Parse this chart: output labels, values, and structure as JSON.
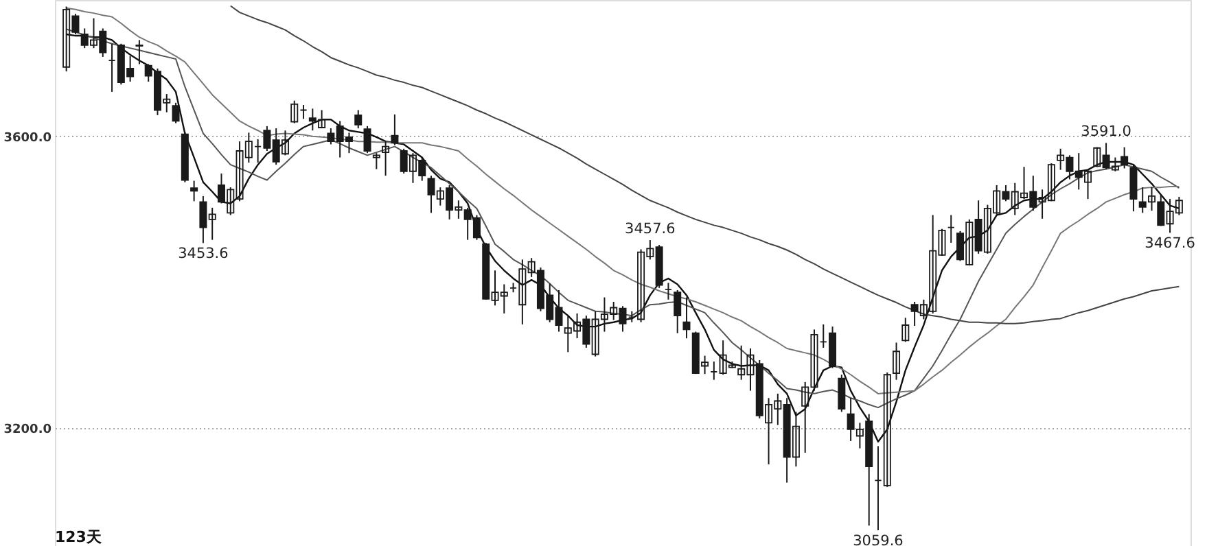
{
  "chart_data": {
    "type": "candlestick",
    "categories": [
      null,
      null,
      null,
      null,
      null,
      null,
      null,
      null,
      null,
      null,
      null,
      null,
      null,
      null,
      null,
      null,
      null,
      null,
      null,
      null,
      null,
      null,
      null,
      null,
      null,
      null,
      null,
      null,
      null,
      null,
      null,
      null,
      null,
      null,
      null,
      null,
      null,
      null,
      null,
      null,
      null,
      null,
      null,
      null,
      null,
      null,
      null,
      null,
      null,
      null,
      null,
      null,
      null,
      null,
      null,
      null,
      null,
      null,
      null,
      null,
      null,
      null,
      null,
      null,
      null,
      null,
      null,
      null,
      null,
      null,
      null,
      null,
      null,
      null,
      null,
      null,
      null,
      null,
      null,
      null,
      null,
      null,
      null,
      null,
      null,
      null,
      null,
      null,
      null,
      null,
      null,
      null,
      null,
      null,
      null,
      null,
      null,
      null,
      null,
      null,
      null,
      null,
      null,
      null,
      null,
      null,
      null,
      null,
      null,
      null,
      null,
      null,
      null,
      null,
      null,
      null,
      null,
      null,
      null,
      null,
      null,
      null,
      null
    ],
    "color": "#1a1a1a",
    "ohlc": [
      [
        3695,
        3778,
        3689,
        3774
      ],
      [
        3765,
        3768,
        3740,
        3743
      ],
      [
        3740,
        3748,
        3721,
        3725
      ],
      [
        3725,
        3762,
        3721,
        3732
      ],
      [
        3744,
        3748,
        3709,
        3715
      ],
      [
        3704,
        3727,
        3661,
        3704
      ],
      [
        3725,
        3727,
        3671,
        3674
      ],
      [
        3693,
        3710,
        3675,
        3682
      ],
      [
        3725,
        3732,
        3699,
        3724
      ],
      [
        3697,
        3699,
        3675,
        3683
      ],
      [
        3689,
        3693,
        3629,
        3636
      ],
      [
        3646,
        3658,
        3633,
        3651
      ],
      [
        3642,
        3646,
        3618,
        3621
      ],
      [
        3603,
        3606,
        3537,
        3540
      ],
      [
        3529,
        3539,
        3511,
        3525
      ],
      [
        3510,
        3518,
        3453.6,
        3475
      ],
      [
        3486,
        3502,
        3458,
        3493
      ],
      [
        3533,
        3549,
        3508,
        3510
      ],
      [
        3495,
        3530,
        3492,
        3527
      ],
      [
        3514,
        3593,
        3511,
        3580
      ],
      [
        3571,
        3605,
        3564,
        3593
      ],
      [
        3586,
        3596,
        3564,
        3586
      ],
      [
        3608,
        3614,
        3580,
        3584
      ],
      [
        3595,
        3611,
        3561,
        3565
      ],
      [
        3576,
        3608,
        3574,
        3595
      ],
      [
        3620,
        3649,
        3618,
        3644
      ],
      [
        3636,
        3643,
        3624,
        3636
      ],
      [
        3625,
        3638,
        3608,
        3621
      ],
      [
        3612,
        3636,
        3611,
        3623
      ],
      [
        3604,
        3611,
        3589,
        3593
      ],
      [
        3614,
        3621,
        3571,
        3593
      ],
      [
        3599,
        3605,
        3577,
        3593
      ],
      [
        3629,
        3636,
        3611,
        3616
      ],
      [
        3610,
        3614,
        3577,
        3580
      ],
      [
        3571,
        3577,
        3555,
        3574
      ],
      [
        3578,
        3593,
        3546,
        3586
      ],
      [
        3601,
        3630,
        3588,
        3591
      ],
      [
        3580,
        3583,
        3549,
        3552
      ],
      [
        3552,
        3577,
        3536,
        3574
      ],
      [
        3567,
        3571,
        3539,
        3546
      ],
      [
        3542,
        3546,
        3495,
        3520
      ],
      [
        3514,
        3530,
        3505,
        3525
      ],
      [
        3529,
        3533,
        3486,
        3499
      ],
      [
        3499,
        3512,
        3487,
        3503
      ],
      [
        3499,
        3502,
        3458,
        3486
      ],
      [
        3488,
        3492,
        3458,
        3461
      ],
      [
        3452,
        3454,
        3376,
        3377
      ],
      [
        3375,
        3416,
        3368,
        3386
      ],
      [
        3381,
        3397,
        3357,
        3386
      ],
      [
        3392,
        3399,
        3386,
        3392
      ],
      [
        3369,
        3431,
        3342,
        3418
      ],
      [
        3413,
        3433,
        3407,
        3428
      ],
      [
        3416,
        3420,
        3360,
        3364
      ],
      [
        3382,
        3398,
        3345,
        3349
      ],
      [
        3365,
        3389,
        3332,
        3341
      ],
      [
        3330,
        3354,
        3304,
        3337
      ],
      [
        3333,
        3357,
        3323,
        3345
      ],
      [
        3349,
        3354,
        3310,
        3315
      ],
      [
        3301,
        3360,
        3298,
        3349
      ],
      [
        3349,
        3379,
        3332,
        3356
      ],
      [
        3356,
        3373,
        3348,
        3365
      ],
      [
        3364,
        3367,
        3332,
        3343
      ],
      [
        3352,
        3360,
        3345,
        3352
      ],
      [
        3349,
        3445,
        3345,
        3441
      ],
      [
        3435,
        3457.6,
        3431,
        3446
      ],
      [
        3448,
        3451,
        3392,
        3396
      ],
      [
        3390,
        3399,
        3376,
        3390
      ],
      [
        3386,
        3389,
        3330,
        3354
      ],
      [
        3345,
        3379,
        3323,
        3335
      ],
      [
        3330,
        3332,
        3274,
        3275
      ],
      [
        3285,
        3299,
        3274,
        3290
      ],
      [
        3277,
        3291,
        3266,
        3277
      ],
      [
        3275,
        3320,
        3273,
        3300
      ],
      [
        3283,
        3291,
        3282,
        3286
      ],
      [
        3273,
        3313,
        3266,
        3281
      ],
      [
        3273,
        3309,
        3251,
        3300
      ],
      [
        3288,
        3293,
        3213,
        3217
      ],
      [
        3207,
        3241,
        3150,
        3232
      ],
      [
        3226,
        3247,
        3204,
        3237
      ],
      [
        3232,
        3241,
        3125,
        3160
      ],
      [
        3160,
        3222,
        3147,
        3202
      ],
      [
        3230,
        3263,
        3166,
        3256
      ],
      [
        3256,
        3335,
        3251,
        3328
      ],
      [
        3318,
        3342,
        3310,
        3318
      ],
      [
        3330,
        3339,
        3282,
        3285
      ],
      [
        3268,
        3273,
        3222,
        3226
      ],
      [
        3219,
        3241,
        3182,
        3198
      ],
      [
        3189,
        3207,
        3172,
        3198
      ],
      [
        3209,
        3219,
        3066,
        3147
      ],
      [
        3128,
        3175,
        3059.6,
        3128
      ],
      [
        3121,
        3276,
        3119,
        3273
      ],
      [
        3275,
        3317,
        3266,
        3305
      ],
      [
        3320,
        3351,
        3318,
        3341
      ],
      [
        3369,
        3373,
        3340,
        3360
      ],
      [
        3354,
        3376,
        3349,
        3369
      ],
      [
        3360,
        3492,
        3357,
        3443
      ],
      [
        3437,
        3473,
        3436,
        3471
      ],
      [
        3475,
        3492,
        3454,
        3475
      ],
      [
        3467,
        3470,
        3429,
        3431
      ],
      [
        3424,
        3486,
        3423,
        3482
      ],
      [
        3486,
        3512,
        3439,
        3443
      ],
      [
        3441,
        3506,
        3439,
        3501
      ],
      [
        3495,
        3533,
        3493,
        3525
      ],
      [
        3524,
        3533,
        3511,
        3514
      ],
      [
        3501,
        3536,
        3492,
        3524
      ],
      [
        3516,
        3558,
        3514,
        3522
      ],
      [
        3524,
        3546,
        3498,
        3503
      ],
      [
        3510,
        3527,
        3487,
        3516
      ],
      [
        3512,
        3563,
        3511,
        3561
      ],
      [
        3567,
        3583,
        3554,
        3574
      ],
      [
        3571,
        3574,
        3541,
        3552
      ],
      [
        3552,
        3577,
        3527,
        3544
      ],
      [
        3537,
        3555,
        3514,
        3552
      ],
      [
        3559,
        3585,
        3558,
        3584
      ],
      [
        3574,
        3591.0,
        3555,
        3557
      ],
      [
        3554,
        3571,
        3552,
        3559
      ],
      [
        3572,
        3585,
        3556,
        3561
      ],
      [
        3557,
        3561,
        3497,
        3514
      ],
      [
        3510,
        3530,
        3495,
        3503
      ],
      [
        3510,
        3530,
        3498,
        3518
      ],
      [
        3510,
        3520,
        3477,
        3478
      ],
      [
        3480,
        3514,
        3467.6,
        3497
      ],
      [
        3495,
        3517,
        3492,
        3512
      ]
    ],
    "series": [
      {
        "type": "line",
        "color": "#111111",
        "values": [
          3740,
          3738,
          3738,
          3736,
          3736,
          3732,
          3721,
          3712,
          3704,
          3697,
          3687,
          3678,
          3661,
          3604,
          3571,
          3537,
          3524,
          3510,
          3508,
          3518,
          3542,
          3561,
          3576,
          3584,
          3591,
          3604,
          3612,
          3618,
          3623,
          3623,
          3614,
          3608,
          3606,
          3604,
          3599,
          3593,
          3591,
          3589,
          3580,
          3571,
          3554,
          3542,
          3537,
          3524,
          3508,
          3473,
          3448,
          3429,
          3416,
          3405,
          3396,
          3403,
          3396,
          3379,
          3364,
          3354,
          3341,
          3339,
          3339,
          3343,
          3345,
          3348,
          3350,
          3358,
          3382,
          3399,
          3405,
          3397,
          3382,
          3358,
          3335,
          3307,
          3294,
          3288,
          3285,
          3286,
          3286,
          3279,
          3260,
          3247,
          3217,
          3226,
          3254,
          3279,
          3285,
          3283,
          3251,
          3228,
          3209,
          3181,
          3198,
          3236,
          3279,
          3311,
          3341,
          3379,
          3416,
          3435,
          3448,
          3461,
          3463,
          3471,
          3492,
          3495,
          3505,
          3512,
          3514,
          3514,
          3524,
          3537,
          3546,
          3552,
          3554,
          3561,
          3565,
          3565,
          3565,
          3561,
          3548,
          3535,
          3520,
          3505,
          3501
        ]
      },
      {
        "type": "line",
        "color": "#555555",
        "values": [
          3747,
          3743,
          3739,
          3735,
          3731,
          3727,
          3724,
          3721,
          3718,
          3715,
          3712,
          3709,
          3706,
          3668,
          3636,
          3604,
          3590,
          3575,
          3561,
          3556,
          3551,
          3545,
          3540,
          3552,
          3563,
          3575,
          3586,
          3589,
          3592,
          3595,
          3590,
          3584,
          3579,
          3574,
          3578,
          3582,
          3586,
          3579,
          3571,
          3564,
          3557,
          3546,
          3535,
          3524,
          3512,
          3501,
          3477,
          3452,
          3442,
          3431,
          3424,
          3416,
          3409,
          3398,
          3386,
          3375,
          3370,
          3365,
          3360,
          3359,
          3357,
          3356,
          3354,
          3362,
          3369,
          3370,
          3372,
          3373,
          3368,
          3363,
          3358,
          3344,
          3331,
          3317,
          3307,
          3296,
          3286,
          3275,
          3265,
          3254,
          3252,
          3249,
          3247,
          3250,
          3252,
          3247,
          3241,
          3237,
          3232,
          3228,
          3234,
          3240,
          3245,
          3251,
          3268,
          3285,
          3306,
          3328,
          3349,
          3375,
          3401,
          3423,
          3445,
          3467,
          3479,
          3490,
          3500,
          3510,
          3520,
          3528,
          3535,
          3543,
          3550,
          3553,
          3555,
          3558,
          3561,
          3558,
          3555,
          3552,
          3544,
          3537,
          3529
        ]
      },
      {
        "type": "line",
        "color": "#777777",
        "values": [
          3776,
          3774,
          3771,
          3769,
          3766,
          3764,
          3755,
          3745,
          3736,
          3730,
          3725,
          3717,
          3710,
          3702,
          3687,
          3672,
          3657,
          3645,
          3633,
          3621,
          3614,
          3608,
          3601,
          3603,
          3604,
          3603,
          3602,
          3600,
          3599,
          3598,
          3596,
          3595,
          3593,
          3593,
          3592,
          3592,
          3591,
          3591,
          3591,
          3591,
          3588,
          3586,
          3583,
          3580,
          3569,
          3559,
          3548,
          3538,
          3528,
          3519,
          3509,
          3499,
          3490,
          3481,
          3472,
          3463,
          3454,
          3445,
          3435,
          3426,
          3416,
          3410,
          3403,
          3397,
          3393,
          3388,
          3384,
          3380,
          3377,
          3373,
          3368,
          3363,
          3358,
          3352,
          3347,
          3339,
          3332,
          3324,
          3317,
          3309,
          3306,
          3303,
          3300,
          3294,
          3287,
          3281,
          3273,
          3264,
          3256,
          3247,
          3248,
          3249,
          3250,
          3251,
          3260,
          3270,
          3279,
          3290,
          3300,
          3311,
          3321,
          3330,
          3340,
          3349,
          3365,
          3380,
          3396,
          3420,
          3443,
          3467,
          3476,
          3484,
          3493,
          3501,
          3510,
          3515,
          3520,
          3524,
          3529,
          3530,
          3530,
          3531,
          3531
        ]
      },
      {
        "type": "line",
        "color": "#444444",
        "values": [
          null,
          null,
          null,
          null,
          null,
          null,
          null,
          null,
          null,
          null,
          null,
          null,
          null,
          null,
          null,
          null,
          null,
          null,
          3779,
          3770,
          3765,
          3760,
          3756,
          3751,
          3746,
          3738,
          3731,
          3723,
          3716,
          3708,
          3703,
          3698,
          3694,
          3689,
          3684,
          3681,
          3677,
          3674,
          3670,
          3667,
          3662,
          3657,
          3652,
          3647,
          3642,
          3636,
          3631,
          3625,
          3620,
          3614,
          3608,
          3602,
          3596,
          3590,
          3584,
          3577,
          3570,
          3562,
          3555,
          3548,
          3541,
          3534,
          3526,
          3519,
          3512,
          3507,
          3502,
          3496,
          3491,
          3486,
          3482,
          3478,
          3475,
          3471,
          3467,
          3462,
          3458,
          3453,
          3449,
          3444,
          3438,
          3431,
          3425,
          3418,
          3412,
          3406,
          3400,
          3394,
          3388,
          3382,
          3377,
          3372,
          3366,
          3361,
          3356,
          3354,
          3352,
          3349,
          3347,
          3345,
          3345,
          3344,
          3344,
          3343,
          3343,
          3344,
          3346,
          3347,
          3349,
          3350,
          3354,
          3358,
          3361,
          3365,
          3369,
          3373,
          3377,
          3380,
          3384,
          3388,
          3390,
          3392,
          3394
        ]
      }
    ],
    "ylim": [
      3038,
      3787
    ],
    "yticks": [
      {
        "value": 3200,
        "label": "3200.0"
      },
      {
        "value": 3600,
        "label": "3600.0"
      }
    ],
    "grid": "y",
    "tick_labels": "y",
    "annotations": [
      "123天",
      {
        "text": "3453.6",
        "y": 3453.6
      },
      {
        "text": "3457.6",
        "y": 3457.6
      },
      {
        "text": "3059.6",
        "y": 3059.6
      },
      {
        "text": "3591.0",
        "y": 3591.0
      },
      {
        "text": "3467.6",
        "y": 3467.6
      }
    ]
  }
}
